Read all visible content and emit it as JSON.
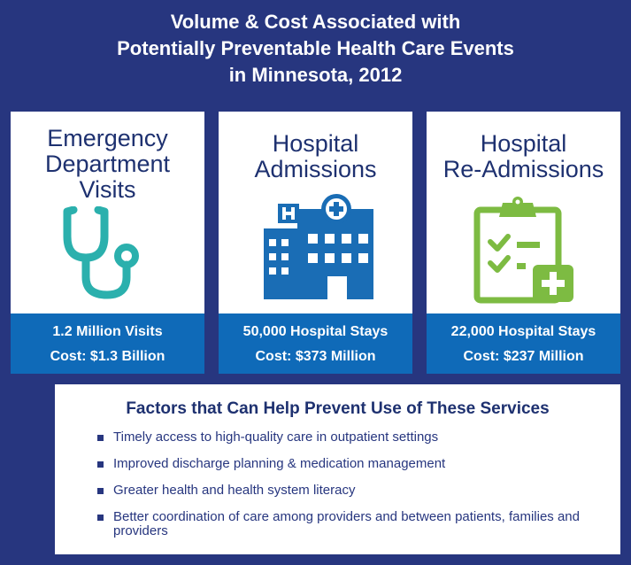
{
  "title": {
    "line1": "Volume & Cost Associated with",
    "line2": "Potentially Preventable Health Care Events",
    "line3": "in Minnesota, 2012"
  },
  "cards": [
    {
      "title_lines": [
        "Emergency",
        "Department",
        "Visits"
      ],
      "icon": "stethoscope-icon",
      "icon_color": "#2bb0ad",
      "stat1": "1.2 Million Visits",
      "stat2": "Cost: $1.3 Billion"
    },
    {
      "title_lines": [
        "Hospital",
        "Admissions"
      ],
      "icon": "hospital-building-icon",
      "icon_color": "#1a6db5",
      "stat1": "50,000 Hospital Stays",
      "stat2": "Cost: $373 Million"
    },
    {
      "title_lines": [
        "Hospital",
        "Re-Admissions"
      ],
      "icon": "clipboard-checklist-icon",
      "icon_color": "#7dbb42",
      "stat1": "22,000 Hospital Stays",
      "stat2": "Cost: $237 Million"
    }
  ],
  "factors": {
    "title": "Factors that Can Help Prevent Use of These Services",
    "items": [
      "Timely access to high-quality care in outpatient settings",
      "Improved discharge planning & medication management",
      "Greater health and health system literacy",
      "Better coordination of care among providers and between patients, families and providers"
    ]
  },
  "colors": {
    "background": "#27367f",
    "stat_band": "#0f6ab8",
    "heading_text": "#1e3170"
  }
}
